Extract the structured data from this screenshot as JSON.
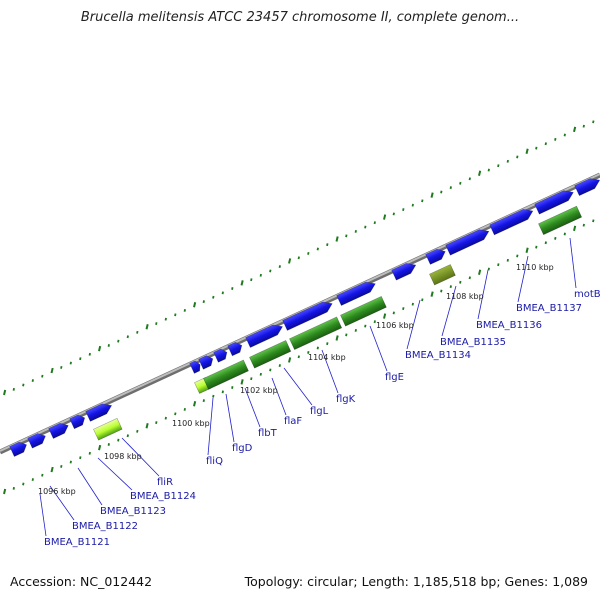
{
  "header": {
    "title": "Brucella melitensis ATCC 23457 chromosome II, complete genom..."
  },
  "footer": {
    "accession": "Accession: NC_012442",
    "summary": "Topology: circular; Length: 1,185,518 bp; Genes: 1,089"
  },
  "kbp_ticks": [
    "1096 kbp",
    "1098 kbp",
    "1100 kbp",
    "1102 kbp",
    "1104 kbp",
    "1106 kbp",
    "1108 kbp",
    "1110 kbp"
  ],
  "gene_labels": [
    "BMEA_B1121",
    "BMEA_B1122",
    "BMEA_B1123",
    "BMEA_B1124",
    "fliR",
    "fliQ",
    "flgD",
    "flbT",
    "flaF",
    "flgL",
    "flgK",
    "flgE",
    "BMEA_B1134",
    "BMEA_B1135",
    "BMEA_B1136",
    "BMEA_B1137",
    "motB"
  ],
  "colors": {
    "backbone": "#9a9a9a",
    "gene_blue": "#1a1ae0",
    "cds_green": "#2e8b1e",
    "cds_olive": "#6f8f1f",
    "cds_lime": "#b8ff30",
    "tick_green": "#1f7a1f",
    "label_blue": "#1a1aa6"
  }
}
